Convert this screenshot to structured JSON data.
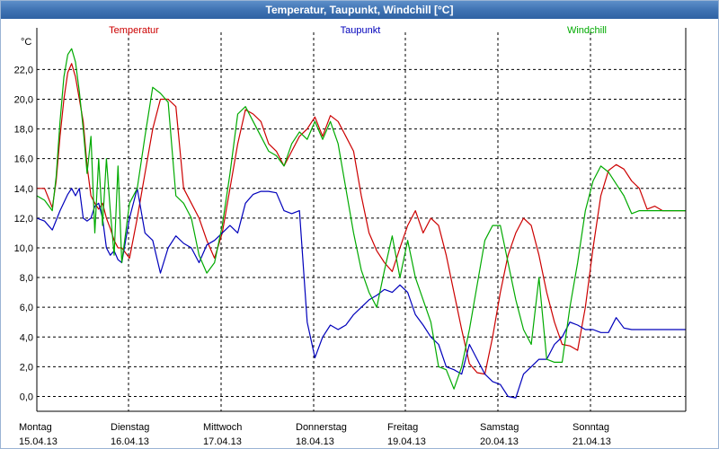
{
  "window": {
    "title": "Temperatur, Taupunkt, Windchill [°C]"
  },
  "colors": {
    "temperatur": "#cc0000",
    "taupunkt": "#0000bb",
    "windchill": "#00aa00",
    "grid": "#000000"
  },
  "chart_data": {
    "type": "line",
    "title": "Temperatur, Taupunkt, Windchill [°C]",
    "ylabel": "°C",
    "xlabel": "",
    "ylim": [
      -1.0,
      24.5
    ],
    "y_ticks": [
      "0,0",
      "2,0",
      "4,0",
      "6,0",
      "8,0",
      "10,0",
      "12,0",
      "14,0",
      "16,0",
      "18,0",
      "20,0",
      "22,0"
    ],
    "y_tick_values": [
      0,
      2,
      4,
      6,
      8,
      10,
      12,
      14,
      16,
      18,
      20,
      22
    ],
    "grid": true,
    "legend": "top",
    "days": [
      {
        "weekday": "Montag",
        "date": "15.04.13"
      },
      {
        "weekday": "Dienstag",
        "date": "16.04.13"
      },
      {
        "weekday": "Mittwoch",
        "date": "17.04.13"
      },
      {
        "weekday": "Donnerstag",
        "date": "18.04.13"
      },
      {
        "weekday": "Freitag",
        "date": "19.04.13"
      },
      {
        "weekday": "Samstag",
        "date": "20.04.13"
      },
      {
        "weekday": "Sonntag",
        "date": "21.04.13"
      }
    ],
    "x_unit": "hours since 15.04.13 00:00",
    "xlim": [
      0,
      168
    ],
    "series": [
      {
        "name": "Temperatur",
        "x": [
          0,
          2,
          4,
          5,
          6,
          7,
          8,
          9,
          10,
          11,
          12,
          13,
          14,
          15,
          16,
          17,
          18,
          19,
          20,
          21,
          22,
          24,
          26,
          28,
          30,
          32,
          34,
          36,
          38,
          40,
          42,
          44,
          46,
          48,
          50,
          52,
          54,
          56,
          58,
          60,
          62,
          64,
          66,
          68,
          70,
          72,
          74,
          76,
          78,
          80,
          82,
          84,
          86,
          88,
          90,
          92,
          94,
          96,
          98,
          100,
          102,
          104,
          106,
          108,
          110,
          112,
          114,
          116,
          118,
          120,
          122,
          124,
          126,
          128,
          130,
          132,
          134,
          136,
          138,
          140,
          142,
          144,
          146,
          148,
          150,
          152,
          154,
          156,
          158,
          160,
          162,
          164,
          166,
          168
        ],
        "values": [
          14.0,
          14.0,
          12.7,
          14.5,
          17.5,
          20.0,
          21.8,
          22.4,
          21.5,
          20.0,
          18.5,
          15.5,
          13.5,
          13.0,
          12.6,
          13.0,
          12.0,
          11.3,
          10.5,
          10.0,
          10.0,
          9.3,
          12.0,
          15.0,
          18.0,
          20.0,
          20.0,
          19.5,
          14.0,
          13.0,
          12.0,
          10.5,
          9.3,
          11.0,
          14.0,
          17.0,
          19.3,
          19.0,
          18.5,
          17.0,
          16.5,
          15.5,
          16.5,
          17.5,
          18.0,
          18.8,
          17.5,
          18.9,
          18.5,
          17.5,
          16.5,
          13.5,
          11.0,
          9.8,
          9.0,
          8.4,
          10.0,
          11.5,
          12.5,
          11.0,
          12.0,
          11.5,
          9.5,
          7.0,
          4.5,
          2.2,
          1.6,
          1.5,
          4.0,
          7.0,
          9.5,
          11.0,
          12.0,
          11.5,
          9.5,
          7.0,
          5.0,
          3.5,
          3.4,
          3.1,
          6.0,
          10.0,
          13.5,
          15.2,
          15.6,
          15.3,
          14.5,
          14.0,
          12.6,
          12.8,
          12.5,
          12.5,
          12.5,
          12.5
        ],
        "color": "#cc0000"
      },
      {
        "name": "Taupunkt",
        "x": [
          0,
          2,
          4,
          6,
          8,
          9,
          10,
          11,
          12,
          13,
          14,
          15,
          16,
          17,
          18,
          19,
          20,
          21,
          22,
          24,
          26,
          28,
          30,
          32,
          34,
          36,
          38,
          40,
          42,
          44,
          46,
          48,
          50,
          52,
          54,
          56,
          58,
          60,
          62,
          64,
          66,
          68,
          70,
          72,
          74,
          76,
          78,
          80,
          82,
          84,
          86,
          88,
          90,
          92,
          94,
          96,
          98,
          100,
          102,
          104,
          106,
          108,
          110,
          112,
          114,
          116,
          118,
          120,
          122,
          124,
          126,
          128,
          130,
          132,
          134,
          136,
          138,
          140,
          142,
          144,
          146,
          148,
          150,
          152,
          154,
          156,
          158,
          160,
          162,
          164,
          166,
          168
        ],
        "values": [
          12.0,
          11.8,
          11.2,
          12.5,
          13.6,
          14.0,
          13.5,
          14.0,
          12.0,
          11.8,
          12.0,
          12.8,
          13.0,
          12.0,
          10.0,
          9.5,
          9.8,
          9.2,
          9.0,
          12.0,
          14.0,
          11.0,
          10.5,
          8.3,
          10.0,
          10.8,
          10.3,
          10.0,
          9.0,
          10.2,
          10.5,
          11.0,
          11.5,
          11.0,
          13.0,
          13.6,
          13.8,
          13.8,
          13.7,
          12.5,
          12.3,
          12.5,
          5.0,
          2.6,
          4.0,
          4.8,
          4.5,
          4.8,
          5.5,
          6.0,
          6.5,
          6.8,
          7.2,
          7.0,
          7.5,
          7.0,
          5.5,
          4.8,
          4.0,
          3.5,
          2.0,
          1.8,
          1.5,
          3.5,
          2.5,
          1.5,
          1.0,
          0.8,
          0.0,
          -0.1,
          1.5,
          2.0,
          2.5,
          2.5,
          3.5,
          4.0,
          5.0,
          4.8,
          4.5,
          4.5,
          4.3,
          4.3,
          5.3,
          4.6,
          4.5,
          4.5,
          4.5,
          4.5,
          4.5,
          4.5,
          4.5,
          4.5
        ],
        "color": "#0000bb"
      },
      {
        "name": "Windchill",
        "x": [
          0,
          2,
          4,
          5,
          6,
          7,
          8,
          9,
          10,
          11,
          12,
          13,
          14,
          15,
          16,
          17,
          18,
          19,
          20,
          21,
          22,
          24,
          26,
          28,
          30,
          32,
          34,
          36,
          38,
          40,
          42,
          44,
          46,
          48,
          50,
          52,
          54,
          56,
          58,
          60,
          62,
          64,
          66,
          68,
          70,
          72,
          74,
          76,
          78,
          80,
          82,
          84,
          86,
          88,
          90,
          92,
          94,
          96,
          98,
          100,
          102,
          104,
          106,
          108,
          110,
          112,
          114,
          116,
          118,
          120,
          122,
          124,
          126,
          128,
          130,
          132,
          134,
          136,
          138,
          140,
          142,
          144,
          146,
          148,
          150,
          152,
          154,
          156,
          158,
          160,
          162,
          164,
          166,
          168
        ],
        "values": [
          13.5,
          13.2,
          12.5,
          14.8,
          18.5,
          21.5,
          23.0,
          23.4,
          22.5,
          20.5,
          18.0,
          15.0,
          17.5,
          11.0,
          16.0,
          11.5,
          16.0,
          12.5,
          9.5,
          15.5,
          9.0,
          13.0,
          14.0,
          17.5,
          20.8,
          20.4,
          19.8,
          13.5,
          13.0,
          12.0,
          9.5,
          8.3,
          9.0,
          11.5,
          15.0,
          19.0,
          19.5,
          18.5,
          17.5,
          16.5,
          16.2,
          15.5,
          17.0,
          17.8,
          17.3,
          18.5,
          17.3,
          18.5,
          17.0,
          14.0,
          11.0,
          8.5,
          7.0,
          6.0,
          8.5,
          10.8,
          8.0,
          10.5,
          8.0,
          6.5,
          5.0,
          2.0,
          1.8,
          0.5,
          2.0,
          4.5,
          7.5,
          10.5,
          11.5,
          11.5,
          9.0,
          6.5,
          4.5,
          3.5,
          8.0,
          2.5,
          2.3,
          2.3,
          6.0,
          9.0,
          12.5,
          14.5,
          15.5,
          15.1,
          14.3,
          13.5,
          12.3,
          12.5,
          12.5,
          12.5,
          12.5,
          12.5,
          12.5,
          12.5
        ],
        "color": "#00aa00"
      }
    ]
  }
}
